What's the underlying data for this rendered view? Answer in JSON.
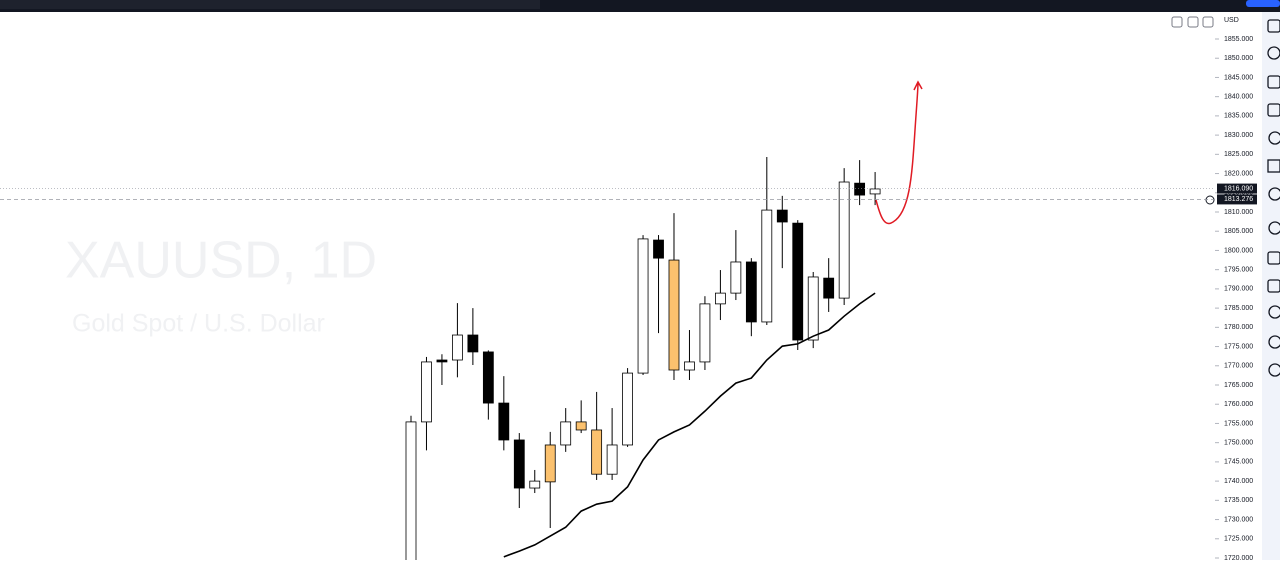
{
  "currency": "USD",
  "chart_data": {
    "type": "candlestick",
    "title": "XAUUSD, 1D",
    "subtitle": "Gold Spot / U.S. Dollar",
    "up_color": "#ffffff",
    "down_color": "#000000",
    "open": [
      1718,
      1755.4,
      1771.5,
      1771.5,
      1778,
      1773.6,
      1760.3,
      1750.7,
      1738.2,
      1739.8,
      1749.4,
      1755.4,
      1753.3,
      1741.8,
      1749.4,
      1768.1,
      1802.7,
      1797.5,
      1768.9,
      1771,
      1786.1,
      1788.9,
      1797,
      1781.4,
      1810.5,
      1807.1,
      1776.7,
      1792.8,
      1787.6,
      1817.5,
      1814.7
    ],
    "high": [
      1757,
      1772.3,
      1773,
      1786.3,
      1785,
      1774,
      1767.3,
      1752.5,
      1742.9,
      1752.8,
      1759,
      1761,
      1763.2,
      1759,
      1769.4,
      1804,
      1804,
      1809.7,
      1779.3,
      1788.1,
      1794.9,
      1805.3,
      1798,
      1824.3,
      1814.2,
      1807.9,
      1794.4,
      1798,
      1821.4,
      1823.5,
      1820.4
    ],
    "low": [
      1715,
      1748,
      1765,
      1767,
      1770.2,
      1756,
      1748,
      1733,
      1736.9,
      1727.8,
      1747.6,
      1752.5,
      1740.3,
      1740.3,
      1748.9,
      1767.6,
      1778.5,
      1766.3,
      1766.3,
      1768.9,
      1781.9,
      1787.1,
      1777.7,
      1780.6,
      1795.4,
      1774.1,
      1774.6,
      1784,
      1785.8,
      1811.8,
      1811.8
    ],
    "close": [
      1755.4,
      1771,
      1771,
      1778,
      1773.6,
      1760.3,
      1750.7,
      1738.2,
      1740,
      1749.4,
      1755.4,
      1753.3,
      1741.8,
      1749.4,
      1768.1,
      1803,
      1798,
      1768.9,
      1771,
      1786.1,
      1788.9,
      1797,
      1781.4,
      1810.5,
      1807.4,
      1776.7,
      1793.1,
      1787.6,
      1817.8,
      1814.4,
      1816
    ],
    "highlight_color": "#fbc16e",
    "highlighted": [
      false,
      false,
      false,
      false,
      false,
      false,
      false,
      false,
      false,
      true,
      false,
      true,
      true,
      false,
      false,
      false,
      false,
      true,
      false,
      false,
      false,
      false,
      false,
      false,
      false,
      false,
      false,
      false,
      false,
      false,
      false
    ],
    "moving_average": {
      "color": "#000000",
      "values": [
        null,
        null,
        null,
        null,
        null,
        null,
        1720.3,
        1721.8,
        1723.4,
        1725.7,
        1728,
        1732.2,
        1734,
        1734.8,
        1738.5,
        1745.5,
        1750.7,
        1752.8,
        1754.6,
        1758.2,
        1762.1,
        1765.5,
        1766.8,
        1771.5,
        1775.1,
        1775.7,
        1777.7,
        1779.3,
        1782.9,
        1786.1,
        1788.9
      ]
    },
    "ylim": [
      1720,
      1855
    ],
    "yticks": [
      {
        "value": 1720,
        "label": "1720.000"
      },
      {
        "value": 1725,
        "label": "1725.000"
      },
      {
        "value": 1730,
        "label": "1730.000"
      },
      {
        "value": 1735,
        "label": "1735.000"
      },
      {
        "value": 1740,
        "label": "1740.000"
      },
      {
        "value": 1745,
        "label": "1745.000"
      },
      {
        "value": 1750,
        "label": "1750.000"
      },
      {
        "value": 1755,
        "label": "1755.000"
      },
      {
        "value": 1760,
        "label": "1760.000"
      },
      {
        "value": 1765,
        "label": "1765.000"
      },
      {
        "value": 1770,
        "label": "1770.000"
      },
      {
        "value": 1775,
        "label": "1775.000"
      },
      {
        "value": 1780,
        "label": "1780.000"
      },
      {
        "value": 1785,
        "label": "1785.000"
      },
      {
        "value": 1790,
        "label": "1790.000"
      },
      {
        "value": 1795,
        "label": "1795.000"
      },
      {
        "value": 1800,
        "label": "1800.000"
      },
      {
        "value": 1805,
        "label": "1805.000"
      },
      {
        "value": 1810,
        "label": "1810.000"
      },
      {
        "value": 1815,
        "label": "1815.000"
      },
      {
        "value": 1820,
        "label": "1820.000"
      },
      {
        "value": 1825,
        "label": "1825.000"
      },
      {
        "value": 1830,
        "label": "1830.000"
      },
      {
        "value": 1835,
        "label": "1835.000"
      },
      {
        "value": 1840,
        "label": "1840.000"
      },
      {
        "value": 1845,
        "label": "1845.000"
      },
      {
        "value": 1850,
        "label": "1850.000"
      },
      {
        "value": 1855,
        "label": "1855.000"
      }
    ],
    "price_lines": [
      {
        "value": 1816.09,
        "label": "1816.090",
        "color": "#131722"
      },
      {
        "value": 1813.276,
        "label": "1813.276",
        "color": "#131722"
      }
    ]
  }
}
